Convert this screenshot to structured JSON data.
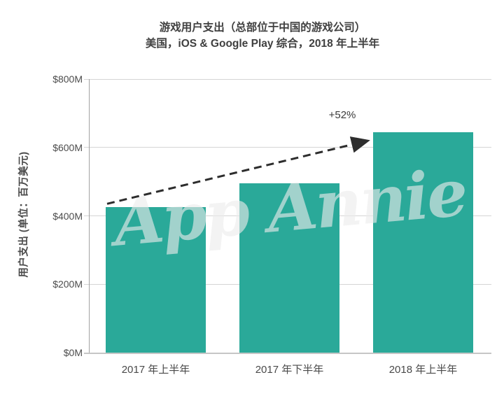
{
  "chart_data": {
    "type": "bar",
    "title": "游戏用户支出（总部位于中国的游戏公司）",
    "subtitle": "美国，iOS & Google Play 综合，2018 年上半年",
    "ylabel": "用户支出 (单位：百万美元)",
    "categories": [
      "2017 年上半年",
      "2017 年下半年",
      "2018 年上半年"
    ],
    "values": [
      425,
      495,
      645
    ],
    "value_unit": "USD millions",
    "ylim": [
      0,
      800
    ],
    "y_ticks": [
      {
        "value": 800,
        "label": "$800M"
      },
      {
        "value": 600,
        "label": "$600M"
      },
      {
        "value": 400,
        "label": "$400M"
      },
      {
        "value": 200,
        "label": "$200M"
      },
      {
        "value": 0,
        "label": "$0M"
      }
    ],
    "grid": true,
    "legend": "none",
    "bar_color": "#2aa999",
    "annotation": {
      "label": "+52%",
      "from_category": "2017 年上半年",
      "to_category": "2018 年上半年",
      "style": "dashed-arrow"
    },
    "watermark": "App Annie"
  }
}
